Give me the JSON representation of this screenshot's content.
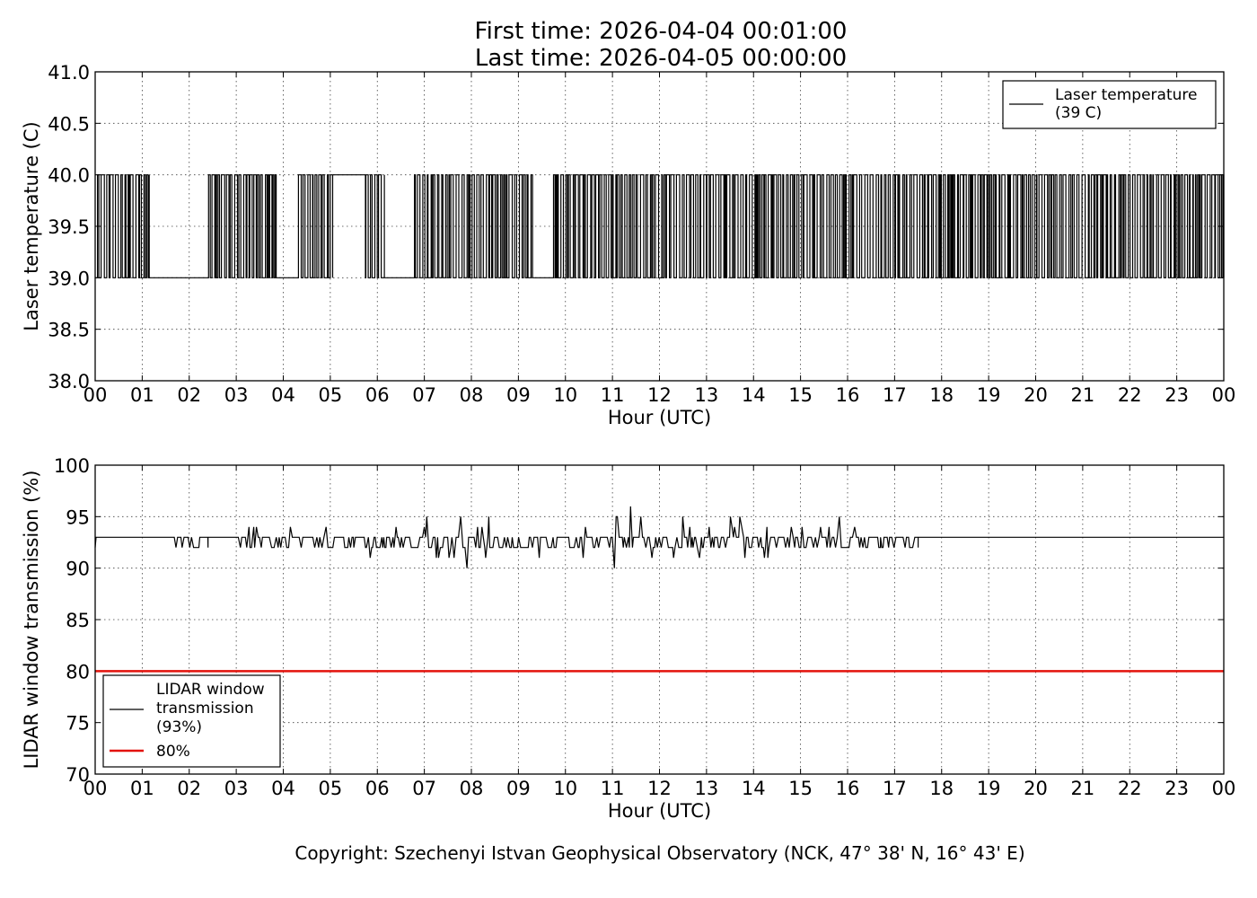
{
  "figure": {
    "title_line1": "First time: 2026-04-04 00:01:00",
    "title_line2": "Last time: 2026-04-05 00:00:00",
    "copyright": "Copyright: Szechenyi Istvan Geophysical Observatory (NCK, 47° 38' N, 16° 43' E)"
  },
  "chart_data": [
    {
      "type": "line",
      "xlabel": "Hour (UTC)",
      "ylabel": "Laser temperature (C)",
      "xlim": [
        0,
        24
      ],
      "ylim": [
        38.0,
        41.0
      ],
      "x_tick_labels": [
        "00",
        "01",
        "02",
        "03",
        "04",
        "05",
        "06",
        "07",
        "08",
        "09",
        "10",
        "11",
        "12",
        "13",
        "14",
        "15",
        "16",
        "17",
        "18",
        "19",
        "20",
        "21",
        "22",
        "23",
        "00"
      ],
      "y_ticks": [
        38.0,
        38.5,
        39.0,
        39.5,
        40.0,
        40.5,
        41.0
      ],
      "y_tick_labels": [
        "38.0",
        "38.5",
        "39.0",
        "39.5",
        "40.0",
        "40.5",
        "41.0"
      ],
      "grid": true,
      "legend_position": "top-right",
      "series": [
        {
          "name": "Laser temperature",
          "legend_label_line1": "Laser temperature",
          "legend_label_line2": "(39 C)",
          "color": "#000000",
          "step_values": [
            39,
            40
          ],
          "segments": [
            {
              "x0": 0.0,
              "x1": 1.15,
              "pattern": "toggling"
            },
            {
              "x0": 1.15,
              "x1": 2.35,
              "value": 39
            },
            {
              "x0": 2.35,
              "x1": 3.85,
              "pattern": "toggling"
            },
            {
              "x0": 3.85,
              "x1": 4.3,
              "value": 39
            },
            {
              "x0": 4.3,
              "x1": 5.05,
              "pattern": "toggling"
            },
            {
              "x0": 5.05,
              "x1": 5.7,
              "value": 40
            },
            {
              "x0": 5.7,
              "x1": 6.15,
              "pattern": "toggling"
            },
            {
              "x0": 6.15,
              "x1": 6.75,
              "value": 39
            },
            {
              "x0": 6.75,
              "x1": 9.3,
              "pattern": "toggling"
            },
            {
              "x0": 9.3,
              "x1": 9.7,
              "value": 39
            },
            {
              "x0": 9.7,
              "x1": 24.0,
              "pattern": "toggling"
            }
          ]
        }
      ]
    },
    {
      "type": "line",
      "xlabel": "Hour (UTC)",
      "ylabel": "LIDAR window transmission (%)",
      "xlim": [
        0,
        24
      ],
      "ylim": [
        70,
        100
      ],
      "x_tick_labels": [
        "00",
        "01",
        "02",
        "03",
        "04",
        "05",
        "06",
        "07",
        "08",
        "09",
        "10",
        "11",
        "12",
        "13",
        "14",
        "15",
        "16",
        "17",
        "18",
        "19",
        "20",
        "21",
        "22",
        "23",
        "00"
      ],
      "y_ticks": [
        70,
        75,
        80,
        85,
        90,
        95,
        100
      ],
      "y_tick_labels": [
        "70",
        "75",
        "80",
        "85",
        "90",
        "95",
        "100"
      ],
      "grid": true,
      "legend_position": "bottom-left",
      "series": [
        {
          "name": "LIDAR window transmission",
          "legend_label_line1": "LIDAR window",
          "legend_label_line2": "transmission",
          "legend_label_line3": "(93%)",
          "color": "#000000",
          "baseline": 93,
          "segments": [
            {
              "x0": 0.0,
              "x1": 1.6,
              "value": 93
            },
            {
              "x0": 1.6,
              "x1": 2.4,
              "min": 92,
              "max": 93
            },
            {
              "x0": 2.4,
              "x1": 2.95,
              "value": 93
            },
            {
              "x0": 2.95,
              "x1": 5.5,
              "min": 92,
              "max": 94
            },
            {
              "x0": 5.5,
              "x1": 7.0,
              "min": 91,
              "max": 94
            },
            {
              "x0": 7.0,
              "x1": 10.5,
              "min": 90,
              "max": 95
            },
            {
              "x0": 10.5,
              "x1": 12.3,
              "min": 90,
              "max": 96
            },
            {
              "x0": 12.3,
              "x1": 16.7,
              "min": 91,
              "max": 95
            },
            {
              "x0": 16.7,
              "x1": 17.5,
              "min": 92,
              "max": 93
            },
            {
              "x0": 17.5,
              "x1": 24.0,
              "value": 93
            }
          ]
        },
        {
          "name": "80%",
          "legend_label_line1": "80%",
          "color": "#e3120b",
          "value": 80,
          "x_range": [
            0,
            24
          ]
        }
      ]
    }
  ]
}
